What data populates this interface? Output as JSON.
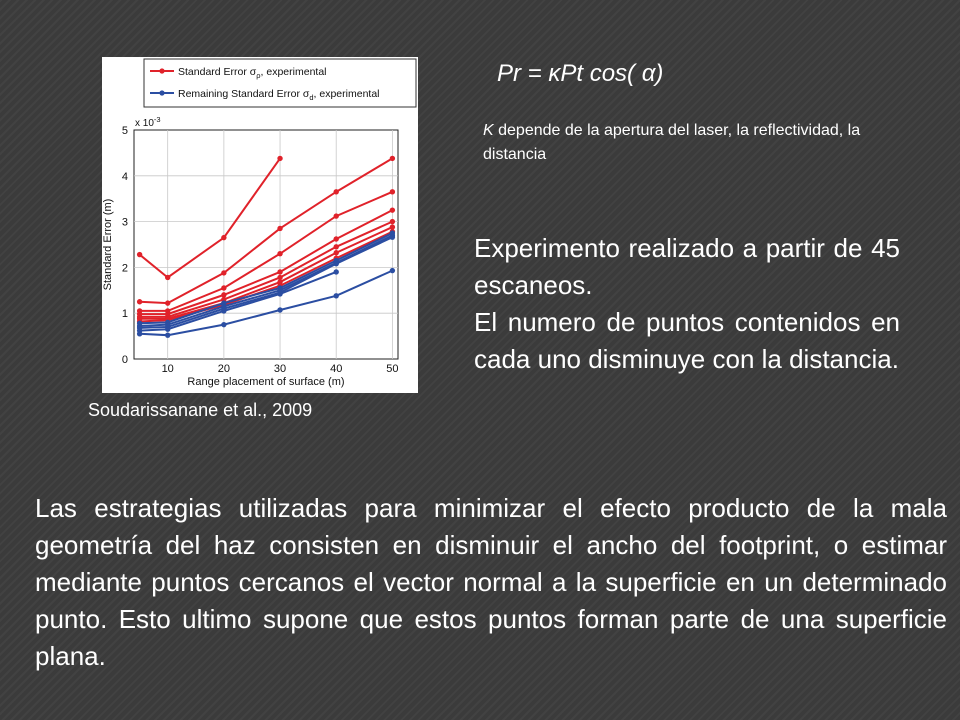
{
  "formula": "Pr = κPt cos( α)",
  "note": {
    "k": "K",
    "text": " depende de la apertura del laser, la reflectividad, la distancia"
  },
  "experiment": {
    "line1": "Experimento realizado a partir de 45 escaneos.",
    "line2": "El numero de puntos contenidos en cada uno disminuye con la distancia."
  },
  "citation": "Soudarissanane et al., 2009",
  "bottom_text": "Las estrategias utilizadas para minimizar el efecto producto de la mala geometría del haz consisten en disminuir el ancho del footprint, o estimar mediante puntos cercanos el vector normal a la superficie en un determinado punto. Esto ultimo supone que estos puntos forman parte de una superficie plana.",
  "chart_data": {
    "type": "line",
    "xlabel": "Range placement of surface (m)",
    "ylabel": "Standard Error (m)",
    "y_multiplier": "x 10",
    "y_multiplier_exp": "-3",
    "xlim": [
      4,
      51
    ],
    "ylim": [
      0,
      5
    ],
    "xticks": [
      10,
      20,
      30,
      40,
      50
    ],
    "yticks": [
      0,
      1,
      2,
      3,
      4,
      5
    ],
    "legend": {
      "position": "top",
      "entries": [
        {
          "label": "Standard Error σρ, experimental",
          "main": "Standard Error σ",
          "sub": "ρ",
          "tail": ", experimental",
          "color": "#e0222a"
        },
        {
          "label": "Remaining Standard Error σd, experimental",
          "main": "Remaining Standard Error σ",
          "sub": "d",
          "tail": ", experimental",
          "color": "#2b4ea2"
        }
      ]
    },
    "series": [
      {
        "group": "red",
        "color": "#e0222a",
        "x": [
          5,
          10,
          20,
          30
        ],
        "y": [
          2.28,
          1.78,
          2.65,
          4.38
        ]
      },
      {
        "group": "red",
        "color": "#e0222a",
        "x": [
          5,
          10,
          20,
          30,
          40,
          50
        ],
        "y": [
          1.25,
          1.22,
          1.88,
          2.85,
          3.65,
          4.38
        ]
      },
      {
        "group": "red",
        "color": "#e0222a",
        "x": [
          5,
          10,
          20,
          30,
          40,
          50
        ],
        "y": [
          1.05,
          1.05,
          1.55,
          2.3,
          3.12,
          3.65
        ]
      },
      {
        "group": "red",
        "color": "#e0222a",
        "x": [
          5,
          10,
          20,
          30,
          40,
          50
        ],
        "y": [
          0.98,
          0.98,
          1.4,
          1.9,
          2.62,
          3.25
        ]
      },
      {
        "group": "red",
        "color": "#e0222a",
        "x": [
          5,
          10,
          20,
          30,
          40,
          50
        ],
        "y": [
          0.92,
          0.92,
          1.3,
          1.78,
          2.45,
          3.0
        ]
      },
      {
        "group": "red",
        "color": "#e0222a",
        "x": [
          5,
          10,
          20,
          30,
          40,
          50
        ],
        "y": [
          0.88,
          0.88,
          1.22,
          1.68,
          2.32,
          2.88
        ]
      },
      {
        "group": "red",
        "color": "#e0222a",
        "x": [
          5,
          10,
          20,
          30,
          40,
          50
        ],
        "y": [
          0.82,
          0.85,
          1.18,
          1.6,
          2.2,
          2.78
        ]
      },
      {
        "group": "blue",
        "color": "#2b4ea2",
        "x": [
          5,
          10,
          20,
          30,
          40,
          50
        ],
        "y": [
          0.78,
          0.8,
          1.22,
          1.55,
          2.15,
          2.75
        ]
      },
      {
        "group": "blue",
        "color": "#2b4ea2",
        "x": [
          5,
          10,
          20,
          30,
          40,
          50
        ],
        "y": [
          0.72,
          0.75,
          1.15,
          1.5,
          2.1,
          2.7
        ]
      },
      {
        "group": "blue",
        "color": "#2b4ea2",
        "x": [
          5,
          10,
          20,
          30,
          40,
          50
        ],
        "y": [
          0.68,
          0.7,
          1.1,
          1.45,
          2.08,
          2.66
        ]
      },
      {
        "group": "blue",
        "color": "#2b4ea2",
        "x": [
          5,
          10,
          20,
          30,
          40
        ],
        "y": [
          0.62,
          0.65,
          1.05,
          1.42,
          1.9
        ]
      },
      {
        "group": "blue",
        "color": "#2b4ea2",
        "x": [
          5,
          10,
          20,
          30,
          40,
          50
        ],
        "y": [
          0.55,
          0.52,
          0.75,
          1.07,
          1.38,
          1.93
        ]
      }
    ]
  }
}
